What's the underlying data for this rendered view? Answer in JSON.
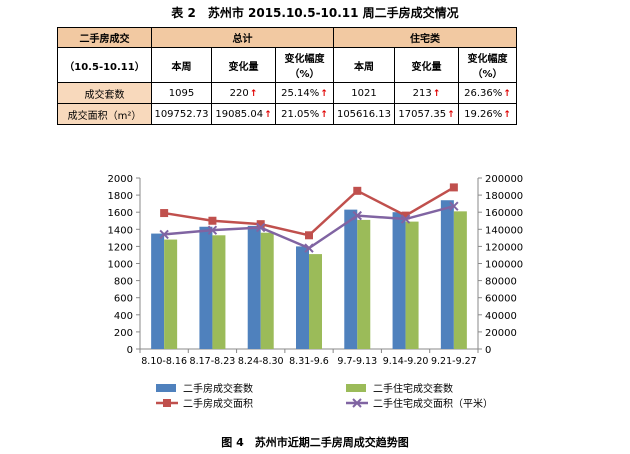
{
  "table": {
    "title": "表 2　苏州市 2015.10.5-10.11 周二手房成交情况",
    "header_group_label": "二手房成交",
    "header_period": "（10.5-10.11）",
    "group_total": "总计",
    "group_residential": "住宅类",
    "col_this_week": "本周",
    "col_change": "变化量",
    "col_change_pct": "变化幅度（%）",
    "rows": [
      {
        "label": "成交套数",
        "total_week": "1095",
        "total_change": "220",
        "total_pct": "25.14%",
        "res_week": "1021",
        "res_change": "213",
        "res_pct": "26.36%"
      },
      {
        "label": "成交面积（m²）",
        "total_week": "109752.73",
        "total_change": "19085.04",
        "total_pct": "21.05%",
        "res_week": "105616.13",
        "res_change": "17057.35",
        "res_pct": "19.26%"
      }
    ],
    "up_arrow": "↑"
  },
  "chart_data": {
    "type": "bar",
    "categories": [
      "8.10-8.16",
      "8.17-8.23",
      "8.24-8.30",
      "8.31-9.6",
      "9.7-9.13",
      "9.14-9.20",
      "9.21-9.27"
    ],
    "series": [
      {
        "name": "二手房成交套数",
        "type": "bar",
        "axis": "left",
        "color": "#4f81bd",
        "values": [
          1350,
          1430,
          1440,
          1200,
          1630,
          1600,
          1740
        ]
      },
      {
        "name": "二手住宅成交套数",
        "type": "bar",
        "axis": "left",
        "color": "#9bbb59",
        "values": [
          1280,
          1330,
          1360,
          1110,
          1510,
          1490,
          1610
        ]
      },
      {
        "name": "二手房成交面积",
        "type": "line",
        "axis": "right",
        "color": "#c0504d",
        "marker": "square",
        "values": [
          159000,
          150000,
          146000,
          133000,
          185000,
          156000,
          189000
        ]
      },
      {
        "name": "二手住宅成交面积（平米）",
        "type": "line",
        "axis": "right",
        "color": "#8064a2",
        "marker": "x",
        "values": [
          134000,
          139000,
          142000,
          118000,
          156000,
          152000,
          167000
        ]
      }
    ],
    "ylim": [
      0,
      2000
    ],
    "yticks": [
      "0",
      "200",
      "400",
      "600",
      "800",
      "1000",
      "1200",
      "1400",
      "1600",
      "1800",
      "2000"
    ],
    "y2lim": [
      0,
      200000
    ],
    "y2ticks": [
      "0",
      "20000",
      "40000",
      "60000",
      "80000",
      "100000",
      "120000",
      "140000",
      "160000",
      "180000",
      "200000"
    ],
    "legend_position": "bottom",
    "grid": false
  },
  "caption": "图 4　苏州市近期二手房周成交趋势图"
}
